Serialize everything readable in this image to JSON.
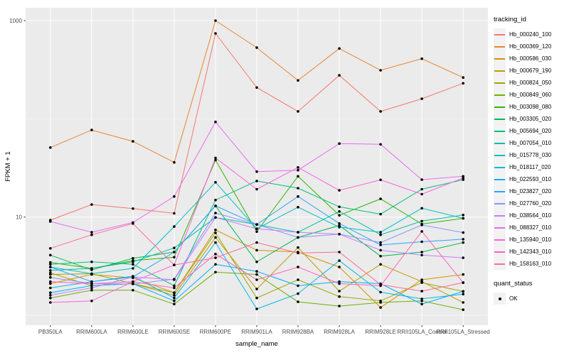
{
  "figure": {
    "ylabel": "FPKM + 1",
    "xlabel": "sample_name",
    "y_tick_labels": [
      "1000",
      "10"
    ],
    "colors": {
      "panel_bg": "#EBEBEB",
      "grid": "#FFFFFF",
      "legend_key_bg": "#F2F2F2",
      "axis_text": "#4D4D4D",
      "axis_title": "#000000",
      "point": "#000000"
    },
    "legend": {
      "tracking_title": "tracking_id",
      "quant_title": "quant_status",
      "quant_label": "OK"
    }
  },
  "chart_data": {
    "type": "line",
    "title": "",
    "xlabel": "sample_name",
    "ylabel": "FPKM + 1",
    "y_scale": "log10",
    "y_major_ticks": [
      10,
      1000
    ],
    "y_minor_gridlines": [
      1,
      100
    ],
    "ylim": [
      0.79,
      1350
    ],
    "grid": true,
    "legend_position": "right",
    "point_marker": {
      "shape": "circle",
      "color": "#000000",
      "legend_title": "quant_status",
      "legend_label": "OK"
    },
    "categories": [
      "PB350LA",
      "RRIM600LA",
      "RRIM600LE",
      "RRIM600SE",
      "RRIM600PE",
      "RRIM901LA",
      "RRIM928BA",
      "RRIM928LA",
      "RRIM928LE",
      "RRII105LA_Control",
      "RRII105LA_Stressed"
    ],
    "series": [
      {
        "name": "Hb_000240_100",
        "color": "#F8766D",
        "values": [
          9.3,
          13.4,
          12.2,
          10.9,
          740,
          208,
          119,
          277,
          119,
          160,
          230
        ]
      },
      {
        "name": "Hb_000369_120",
        "color": "#E9842C",
        "values": [
          51,
          77,
          59,
          36,
          1000,
          530,
          246,
          520,
          312,
          409,
          263
        ]
      },
      {
        "name": "Hb_000586_030",
        "color": "#D69100",
        "values": [
          2.1,
          2.6,
          2.4,
          1.7,
          7.4,
          4.6,
          4.4,
          3.1,
          1.2,
          2.3,
          2.6
        ]
      },
      {
        "name": "Hb_000679_190",
        "color": "#BC9D00",
        "values": [
          2.7,
          2.0,
          2.1,
          1.6,
          6.2,
          1.85,
          4.9,
          1.76,
          3.3,
          2.2,
          1.35
        ]
      },
      {
        "name": "Hb_000824_050",
        "color": "#9CA700",
        "values": [
          2.6,
          2.65,
          2.1,
          1.7,
          6.9,
          1.5,
          2.3,
          1.55,
          1.4,
          2.15,
          1.75
        ]
      },
      {
        "name": "Hb_000849_060",
        "color": "#6FB000",
        "values": [
          1.5,
          1.8,
          1.8,
          1.3,
          2.75,
          2.6,
          1.37,
          1.24,
          1.35,
          1.4,
          1.14
        ]
      },
      {
        "name": "Hb_003098_080",
        "color": "#2FB600",
        "values": [
          3.45,
          3.0,
          3.6,
          3.9,
          38,
          7.1,
          26,
          10.4,
          15.3,
          8.5,
          9.7
        ]
      },
      {
        "name": "Hb_003305_020",
        "color": "#00BB4E",
        "values": [
          4.1,
          2.9,
          3.8,
          4.4,
          13,
          3.5,
          6.2,
          8.2,
          4.0,
          4.4,
          5.5
        ]
      },
      {
        "name": "Hb_005694_020",
        "color": "#00BF7D",
        "values": [
          3.3,
          3.5,
          3.3,
          2.0,
          14.9,
          23.3,
          19.7,
          12.7,
          10.7,
          19.2,
          24
        ]
      },
      {
        "name": "Hb_007054_010",
        "color": "#00C1A2",
        "values": [
          2.86,
          3.0,
          3.5,
          4.85,
          9.9,
          8.4,
          7.0,
          11.4,
          6.6,
          9.1,
          10.5
        ]
      },
      {
        "name": "Hb_015778_030",
        "color": "#00BFC4",
        "values": [
          3.1,
          2.65,
          3.0,
          8.0,
          22.6,
          7.6,
          12.6,
          7.9,
          7.0,
          12.3,
          9.7
        ]
      },
      {
        "name": "Hb_018117_020",
        "color": "#00BADE",
        "values": [
          1.9,
          2.2,
          2.5,
          1.5,
          5.5,
          1.16,
          1.66,
          3.6,
          1.72,
          1.47,
          1.64
        ]
      },
      {
        "name": "Hb_022593_010",
        "color": "#00ADFA",
        "values": [
          1.7,
          2.0,
          2.1,
          1.4,
          3.3,
          2.8,
          2.0,
          2.2,
          2.1,
          1.3,
          1.75
        ]
      },
      {
        "name": "Hb_023827_020",
        "color": "#29A3FF",
        "values": [
          3.1,
          2.2,
          2.46,
          4.4,
          13,
          8.4,
          16.2,
          8.6,
          5.2,
          5.6,
          5.95
        ]
      },
      {
        "name": "Hb_027760_020",
        "color": "#8B93FF",
        "values": [
          2.43,
          2.1,
          2.08,
          2.33,
          11,
          8.4,
          6.2,
          6.7,
          5.5,
          8.3,
          6.95
        ]
      },
      {
        "name": "Hb_038564_010",
        "color": "#C77CFF",
        "values": [
          1.6,
          1.9,
          2.46,
          2.3,
          9.9,
          7.6,
          7.0,
          6.7,
          4.6,
          4.1,
          3.85
        ]
      },
      {
        "name": "Hb_088327_010",
        "color": "#E76BF3",
        "values": [
          9.0,
          7.0,
          8.8,
          16.2,
          93,
          29,
          30,
          56,
          55,
          24,
          26
        ]
      },
      {
        "name": "Hb_135940_010",
        "color": "#FA62DB",
        "values": [
          1.35,
          1.4,
          2.2,
          3.25,
          40,
          19.2,
          32,
          18.7,
          23.9,
          17.1,
          25
        ]
      },
      {
        "name": "Hb_142343_010",
        "color": "#FF62BC",
        "values": [
          2.2,
          2.1,
          2.2,
          1.9,
          4.2,
          2.3,
          3.1,
          2.1,
          2.0,
          7.15,
          2.15
        ]
      },
      {
        "name": "Hb_158163_010",
        "color": "#FF6A98",
        "values": [
          4.8,
          6.6,
          8.6,
          3.25,
          3.85,
          5.5,
          4.3,
          4.4,
          2.05,
          1.76,
          2.15
        ]
      }
    ]
  }
}
